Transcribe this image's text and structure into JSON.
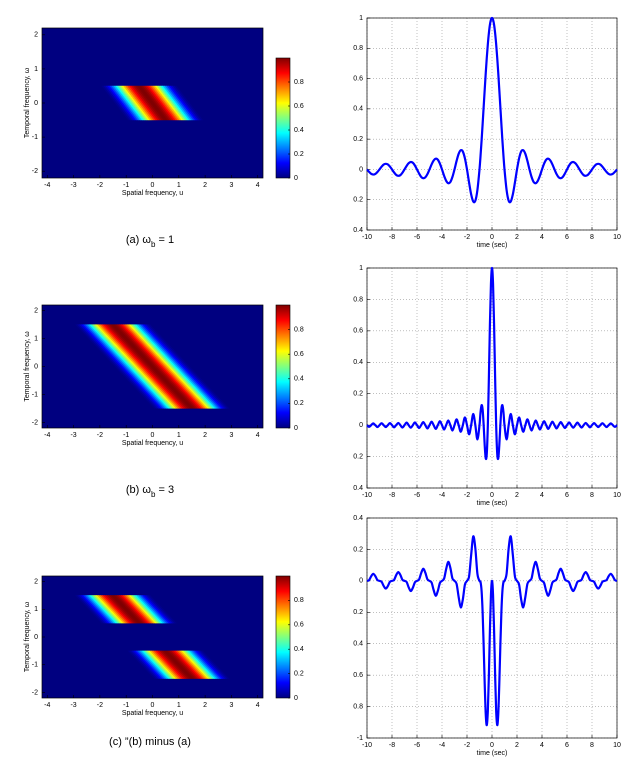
{
  "chart_data": [
    {
      "type": "heatmap",
      "xlabel": "Spatial frequency, u",
      "ylabel": "Temporal frequency, ω",
      "caption": [
        "(a)  ω",
        "b",
        " = 1"
      ],
      "xlim": [
        -4.2,
        4.2
      ],
      "ylim": [
        -2.2,
        2.2
      ],
      "xticks": [
        -4,
        -3,
        -2,
        -1,
        0,
        1,
        2,
        3,
        4
      ],
      "yticks": [
        -2,
        -1,
        0,
        1,
        2
      ],
      "bands": [
        [
          -0.5,
          0.5
        ]
      ],
      "shear": -1,
      "halfwidth": 1.5,
      "colormap": "jet",
      "clim": [
        0,
        1
      ],
      "cticks": [
        0,
        0.2,
        0.4,
        0.6,
        0.8
      ]
    },
    {
      "type": "line",
      "xlabel": "time (sec)",
      "grid": true,
      "xlim": [
        -10,
        10
      ],
      "ylim": [
        -0.4,
        1
      ],
      "xticks": [
        -10,
        -8,
        -6,
        -4,
        -2,
        0,
        2,
        4,
        6,
        8,
        10
      ],
      "yticks": [
        1,
        0.8,
        0.6,
        0.4,
        0.2,
        0,
        {
          "value": -0.2,
          "label": "0.2"
        },
        {
          "value": -0.4,
          "label": "0.4"
        }
      ],
      "x": [
        -10,
        -9.833,
        -9.667,
        -9.5,
        -9.333,
        -9.167,
        -9,
        -8.833,
        -8.667,
        -8.5,
        -8.333,
        -8.167,
        -8,
        -7.833,
        -7.667,
        -7.5,
        -7.333,
        -7.167,
        -7,
        -6.833,
        -6.667,
        -6.5,
        -6.333,
        -6.167,
        -6,
        -5.833,
        -5.667,
        -5.5,
        -5.333,
        -5.167,
        -5,
        -4.833,
        -4.667,
        -4.5,
        -4.333,
        -4.167,
        -4,
        -3.833,
        -3.667,
        -3.5,
        -3.333,
        -3.167,
        -3,
        -2.833,
        -2.667,
        -2.5,
        -2.333,
        -2.167,
        -2,
        -1.833,
        -1.667,
        -1.5,
        -1.333,
        -1.167,
        -1,
        -0.917,
        -0.833,
        -0.75,
        -0.667,
        -0.583,
        -0.5,
        -0.417,
        -0.333,
        -0.25,
        -0.167,
        -0.083,
        0,
        0.083,
        0.167,
        0.25,
        0.333,
        0.417,
        0.5,
        0.583,
        0.667,
        0.75,
        0.833,
        0.917,
        1,
        1.167,
        1.333,
        1.5,
        1.667,
        1.833,
        2,
        2.167,
        2.333,
        2.5,
        2.667,
        2.833,
        3,
        3.167,
        3.333,
        3.5,
        3.667,
        3.833,
        4,
        4.167,
        4.333,
        4.5,
        4.667,
        4.833,
        5,
        5.167,
        5.333,
        5.5,
        5.667,
        5.833,
        6,
        6.167,
        6.333,
        6.5,
        6.667,
        6.833,
        7,
        7.167,
        7.333,
        7.5,
        7.667,
        7.833,
        8,
        8.167,
        8.333,
        8.5,
        8.667,
        8.833,
        9,
        9.167,
        9.333,
        9.5,
        9.667,
        9.833,
        10
      ],
      "series": [
        {
          "color": "#0000ff",
          "values": [
            0,
            -0.016,
            -0.029,
            -0.034,
            -0.03,
            -0.017,
            0,
            0.018,
            0.032,
            0.037,
            0.033,
            0.019,
            0,
            -0.02,
            -0.036,
            -0.042,
            -0.038,
            -0.022,
            0,
            0.023,
            0.041,
            0.049,
            0.044,
            0.026,
            0,
            -0.027,
            -0.049,
            -0.058,
            -0.052,
            -0.031,
            0,
            0.033,
            0.059,
            0.071,
            0.064,
            0.038,
            0,
            -0.042,
            -0.075,
            -0.091,
            -0.083,
            -0.05,
            0,
            0.056,
            0.103,
            0.127,
            0.118,
            0.073,
            0,
            -0.087,
            -0.165,
            -0.212,
            -0.207,
            -0.136,
            0,
            0.09,
            0.191,
            0.3,
            0.413,
            0.527,
            0.637,
            0.738,
            0.827,
            0.9,
            0.955,
            0.989,
            1,
            0.989,
            0.955,
            0.9,
            0.827,
            0.738,
            0.637,
            0.527,
            0.413,
            0.3,
            0.191,
            0.09,
            0,
            -0.136,
            -0.207,
            -0.212,
            -0.165,
            -0.087,
            0,
            0.073,
            0.118,
            0.127,
            0.103,
            0.056,
            0,
            -0.05,
            -0.083,
            -0.091,
            -0.075,
            -0.042,
            0,
            0.038,
            0.064,
            0.071,
            0.059,
            0.033,
            0,
            -0.031,
            -0.052,
            -0.058,
            -0.049,
            -0.027,
            0,
            0.026,
            0.044,
            0.049,
            0.041,
            0.023,
            0,
            -0.022,
            -0.038,
            -0.042,
            -0.036,
            -0.02,
            0,
            0.019,
            0.033,
            0.037,
            0.032,
            0.018,
            0,
            -0.017,
            -0.03,
            -0.034,
            -0.029,
            -0.016,
            0
          ]
        }
      ]
    },
    {
      "type": "heatmap",
      "xlabel": "Spatial frequency, u",
      "ylabel": "Temporal frequency, ω",
      "caption": [
        "(b)  ω",
        "b",
        " = 3"
      ],
      "xlim": [
        -4.2,
        4.2
      ],
      "ylim": [
        -2.2,
        2.2
      ],
      "xticks": [
        -4,
        -3,
        -2,
        -1,
        0,
        1,
        2,
        3,
        4
      ],
      "yticks": [
        -2,
        -1,
        0,
        1,
        2
      ],
      "bands": [
        [
          -1.5,
          1.5
        ]
      ],
      "shear": -1,
      "halfwidth": 1.5,
      "colormap": "jet",
      "clim": [
        0,
        1
      ],
      "cticks": [
        0,
        0.2,
        0.4,
        0.6,
        0.8
      ]
    },
    {
      "type": "line",
      "xlabel": "time (sec)",
      "grid": true,
      "xlim": [
        -10,
        10
      ],
      "ylim": [
        -0.4,
        1
      ],
      "xticks": [
        -10,
        -8,
        -6,
        -4,
        -2,
        0,
        2,
        4,
        6,
        8,
        10
      ],
      "yticks": [
        1,
        0.8,
        0.6,
        0.4,
        0.2,
        0,
        {
          "value": -0.2,
          "label": "0.2"
        },
        {
          "value": -0.4,
          "label": "0.4"
        }
      ],
      "x": [
        -10,
        -9.833,
        -9.667,
        -9.5,
        -9.333,
        -9.167,
        -9,
        -8.833,
        -8.667,
        -8.5,
        -8.333,
        -8.167,
        -8,
        -7.833,
        -7.667,
        -7.5,
        -7.333,
        -7.167,
        -7,
        -6.833,
        -6.667,
        -6.5,
        -6.333,
        -6.167,
        -6,
        -5.833,
        -5.667,
        -5.5,
        -5.333,
        -5.167,
        -5,
        -4.833,
        -4.667,
        -4.5,
        -4.333,
        -4.167,
        -4,
        -3.833,
        -3.667,
        -3.5,
        -3.333,
        -3.167,
        -3,
        -2.833,
        -2.667,
        -2.5,
        -2.333,
        -2.167,
        -2,
        -1.833,
        -1.667,
        -1.5,
        -1.333,
        -1.167,
        -1,
        -0.917,
        -0.833,
        -0.75,
        -0.667,
        -0.583,
        -0.5,
        -0.417,
        -0.333,
        -0.25,
        -0.167,
        -0.083,
        0,
        0.083,
        0.167,
        0.25,
        0.333,
        0.417,
        0.5,
        0.583,
        0.667,
        0.75,
        0.833,
        0.917,
        1,
        1.167,
        1.333,
        1.5,
        1.667,
        1.833,
        2,
        2.167,
        2.333,
        2.5,
        2.667,
        2.833,
        3,
        3.167,
        3.333,
        3.5,
        3.667,
        3.833,
        4,
        4.167,
        4.333,
        4.5,
        4.667,
        4.833,
        5,
        5.167,
        5.333,
        5.5,
        5.667,
        5.833,
        6,
        6.167,
        6.333,
        6.5,
        6.667,
        6.833,
        7,
        7.167,
        7.333,
        7.5,
        7.667,
        7.833,
        8,
        8.167,
        8.333,
        8.5,
        8.667,
        8.833,
        9,
        9.167,
        9.333,
        9.5,
        9.667,
        9.833,
        10
      ],
      "series": [
        {
          "color": "#0000ff",
          "values": [
            0,
            -0.011,
            0,
            0.011,
            0,
            -0.012,
            0,
            0.012,
            0,
            -0.012,
            0,
            0.013,
            0,
            -0.014,
            0,
            0.014,
            0,
            -0.015,
            0,
            0.016,
            0,
            -0.016,
            0,
            0.017,
            0,
            -0.018,
            0,
            0.019,
            0,
            -0.021,
            0,
            0.022,
            0,
            -0.024,
            0,
            0.025,
            0,
            -0.028,
            0,
            0.03,
            0,
            -0.034,
            0,
            0.037,
            0,
            -0.042,
            0,
            0.049,
            0,
            -0.058,
            0,
            0.071,
            0,
            -0.091,
            0,
            0.082,
            0.127,
            0.1,
            0,
            -0.129,
            -0.212,
            -0.18,
            0,
            0.3,
            0.637,
            0.9,
            1,
            0.9,
            0.637,
            0.3,
            0,
            -0.18,
            -0.212,
            -0.129,
            0,
            0.1,
            0.127,
            0.082,
            0,
            -0.091,
            0,
            0.071,
            0,
            -0.058,
            0,
            0.049,
            0,
            -0.042,
            0,
            0.037,
            0,
            -0.034,
            0,
            0.03,
            0,
            -0.028,
            0,
            0.025,
            0,
            -0.024,
            0,
            0.022,
            0,
            -0.021,
            0,
            0.019,
            0,
            -0.018,
            0,
            0.017,
            0,
            -0.016,
            0,
            0.016,
            0,
            -0.015,
            0,
            0.014,
            0,
            -0.014,
            0,
            0.013,
            0,
            -0.012,
            0,
            0.012,
            0,
            -0.012,
            0,
            0.011,
            0,
            -0.011,
            0
          ]
        }
      ]
    },
    {
      "type": "heatmap",
      "xlabel": "Spatial frequency, u",
      "ylabel": "Temporal frequency, ω",
      "caption": [
        "(c) ”(b) minus (a)"
      ],
      "xlim": [
        -4.2,
        4.2
      ],
      "ylim": [
        -2.2,
        2.2
      ],
      "xticks": [
        -4,
        -3,
        -2,
        -1,
        0,
        1,
        2,
        3,
        4
      ],
      "yticks": [
        -2,
        -1,
        0,
        1,
        2
      ],
      "bands": [
        [
          0.5,
          1.5
        ],
        [
          -1.5,
          -0.5
        ]
      ],
      "shear": -1,
      "halfwidth": 1.5,
      "colormap": "jet",
      "clim": [
        0,
        1
      ],
      "cticks": [
        0,
        0.2,
        0.4,
        0.6,
        0.8
      ]
    },
    {
      "type": "line",
      "xlabel": "time (sec)",
      "grid": true,
      "xlim": [
        -10,
        10
      ],
      "ylim": [
        -1,
        0.4
      ],
      "xticks": [
        -10,
        -8,
        -6,
        -4,
        -2,
        0,
        2,
        4,
        6,
        8,
        10
      ],
      "yticks": [
        0.4,
        0.2,
        0,
        {
          "value": -0.2,
          "label": "0.2"
        },
        {
          "value": -0.4,
          "label": "0.4"
        },
        {
          "value": -0.6,
          "label": "0.6"
        },
        {
          "value": -0.8,
          "label": "0.8"
        },
        -1
      ],
      "x": [
        -10,
        -9.833,
        -9.667,
        -9.5,
        -9.333,
        -9.167,
        -9,
        -8.833,
        -8.667,
        -8.5,
        -8.333,
        -8.167,
        -8,
        -7.833,
        -7.667,
        -7.5,
        -7.333,
        -7.167,
        -7,
        -6.833,
        -6.667,
        -6.5,
        -6.333,
        -6.167,
        -6,
        -5.833,
        -5.667,
        -5.5,
        -5.333,
        -5.167,
        -5,
        -4.833,
        -4.667,
        -4.5,
        -4.333,
        -4.167,
        -4,
        -3.833,
        -3.667,
        -3.5,
        -3.333,
        -3.167,
        -3,
        -2.833,
        -2.667,
        -2.5,
        -2.333,
        -2.167,
        -2,
        -1.833,
        -1.667,
        -1.5,
        -1.333,
        -1.167,
        -1,
        -0.917,
        -0.833,
        -0.75,
        -0.667,
        -0.583,
        -0.5,
        -0.417,
        -0.333,
        -0.25,
        -0.167,
        -0.083,
        0,
        0.083,
        0.167,
        0.25,
        0.333,
        0.417,
        0.5,
        0.583,
        0.667,
        0.75,
        0.833,
        0.917,
        1,
        1.167,
        1.333,
        1.5,
        1.667,
        1.833,
        2,
        2.167,
        2.333,
        2.5,
        2.667,
        2.833,
        3,
        3.167,
        3.333,
        3.5,
        3.667,
        3.833,
        4,
        4.167,
        4.333,
        4.5,
        4.667,
        4.833,
        5,
        5.167,
        5.333,
        5.5,
        5.667,
        5.833,
        6,
        6.167,
        6.333,
        6.5,
        6.667,
        6.833,
        7,
        7.167,
        7.333,
        7.5,
        7.667,
        7.833,
        8,
        8.167,
        8.333,
        8.5,
        8.667,
        8.833,
        9,
        9.167,
        9.333,
        9.5,
        9.667,
        9.833,
        10
      ],
      "series": [
        {
          "color": "#0000ff",
          "values": [
            0,
            0.005,
            0.029,
            0.045,
            0.03,
            0.005,
            0,
            -0.006,
            -0.032,
            -0.049,
            -0.033,
            -0.006,
            0,
            0.006,
            0.036,
            0.056,
            0.038,
            0.007,
            0,
            -0.007,
            -0.041,
            -0.065,
            -0.044,
            -0.009,
            0,
            0.009,
            0.049,
            0.077,
            0.052,
            0.01,
            0,
            -0.011,
            -0.059,
            -0.095,
            -0.064,
            -0.013,
            0,
            0.014,
            0.075,
            0.121,
            0.083,
            0.016,
            0,
            -0.019,
            -0.103,
            -0.169,
            -0.118,
            -0.024,
            0,
            0.029,
            0.165,
            0.283,
            0.207,
            0.045,
            0,
            -0.008,
            -0.064,
            -0.2,
            -0.413,
            -0.656,
            -0.849,
            -0.918,
            -0.827,
            -0.6,
            -0.318,
            -0.089,
            0,
            -0.089,
            -0.318,
            -0.6,
            -0.827,
            -0.918,
            -0.849,
            -0.656,
            -0.413,
            -0.2,
            -0.064,
            -0.008,
            0,
            0.045,
            0.207,
            0.283,
            0.165,
            0.029,
            0,
            -0.024,
            -0.118,
            -0.169,
            -0.103,
            -0.019,
            0,
            0.016,
            0.083,
            0.121,
            0.075,
            0.014,
            0,
            -0.013,
            -0.064,
            -0.095,
            -0.059,
            -0.011,
            0,
            0.01,
            0.052,
            0.077,
            0.049,
            0.009,
            0,
            -0.009,
            -0.044,
            -0.065,
            -0.041,
            -0.007,
            0,
            0.007,
            0.038,
            0.056,
            0.036,
            0.006,
            0,
            -0.006,
            -0.033,
            -0.049,
            -0.032,
            -0.006,
            0,
            0.005,
            0.03,
            0.045,
            0.029,
            0.005,
            0
          ]
        }
      ]
    }
  ]
}
